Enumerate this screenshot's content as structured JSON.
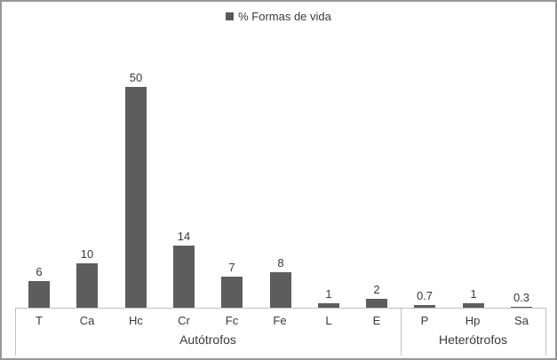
{
  "window": {
    "background_color": "#ffffff",
    "border_color": "#979797"
  },
  "legend": {
    "label": "% Formas de vida",
    "swatch_color": "#595959",
    "swatch_icon": "square"
  },
  "chart_data": {
    "type": "bar",
    "title": "",
    "series_name": "% Formas de vida",
    "categories": [
      "T",
      "Ca",
      "Hc",
      "Cr",
      "Fc",
      "Fe",
      "L",
      "E",
      "P",
      "Hp",
      "Sa"
    ],
    "values": [
      6,
      10,
      50,
      14,
      7,
      8,
      1,
      2,
      0.7,
      1,
      0.3
    ],
    "value_labels": [
      "6",
      "10",
      "50",
      "14",
      "7",
      "8",
      "1",
      "2",
      "0.7",
      "1",
      "0.3"
    ],
    "groups": [
      {
        "label": "Autótrofos",
        "start": 0,
        "end": 7
      },
      {
        "label": "Heterótrofos",
        "start": 8,
        "end": 10
      }
    ],
    "xlabel": "",
    "ylabel": "",
    "ylim": [
      0,
      50
    ],
    "gridlines": false,
    "y_axis_visible": false,
    "data_labels": true,
    "legend_position": "top",
    "bar_color": "#5d5d5d",
    "axis_line_color": "#c0c0c0",
    "text_color": "#3a3a3a"
  }
}
